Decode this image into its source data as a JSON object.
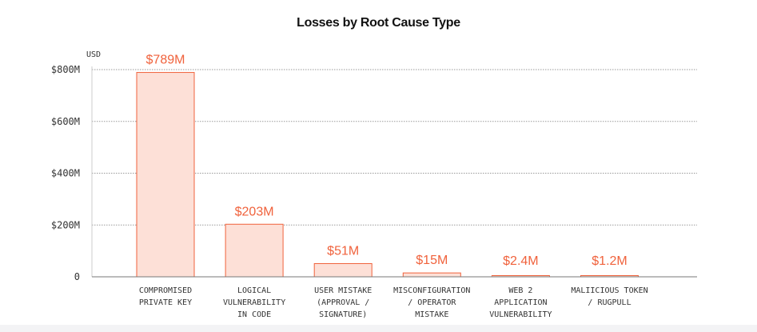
{
  "chart_data": {
    "type": "bar",
    "title": "Losses by Root Cause Type",
    "unit_label": "USD",
    "xlabel": "",
    "ylabel": "",
    "ylim": [
      0,
      800
    ],
    "yticks": [
      0,
      200,
      400,
      600,
      800
    ],
    "ytick_labels": [
      "0",
      "$200M",
      "$400M",
      "$600M",
      "$800M"
    ],
    "categories": [
      [
        "COMPROMISED",
        "PRIVATE KEY"
      ],
      [
        "LOGICAL",
        "VULNERABILITY",
        "IN CODE"
      ],
      [
        "USER MISTAKE",
        "(APPROVAL /",
        "SIGNATURE)"
      ],
      [
        "MISCONFIGURATION",
        "/ OPERATOR",
        "MISTAKE"
      ],
      [
        "WEB 2",
        "APPLICATION",
        "VULNERABILITY"
      ],
      [
        "MALIICIOUS TOKEN",
        "/ RUGPULL"
      ]
    ],
    "values": [
      789,
      203,
      51,
      15,
      2.4,
      1.2
    ],
    "value_labels": [
      "$789M",
      "$203M",
      "$51M",
      "$15M",
      "$2.4M",
      "$1.2M"
    ],
    "grid": true,
    "colors": {
      "bar_fill": "#fde0d7",
      "bar_stroke": "#f0623c",
      "label": "#f0623c",
      "grid": "#9a9a9a",
      "axis": "#777777"
    }
  }
}
